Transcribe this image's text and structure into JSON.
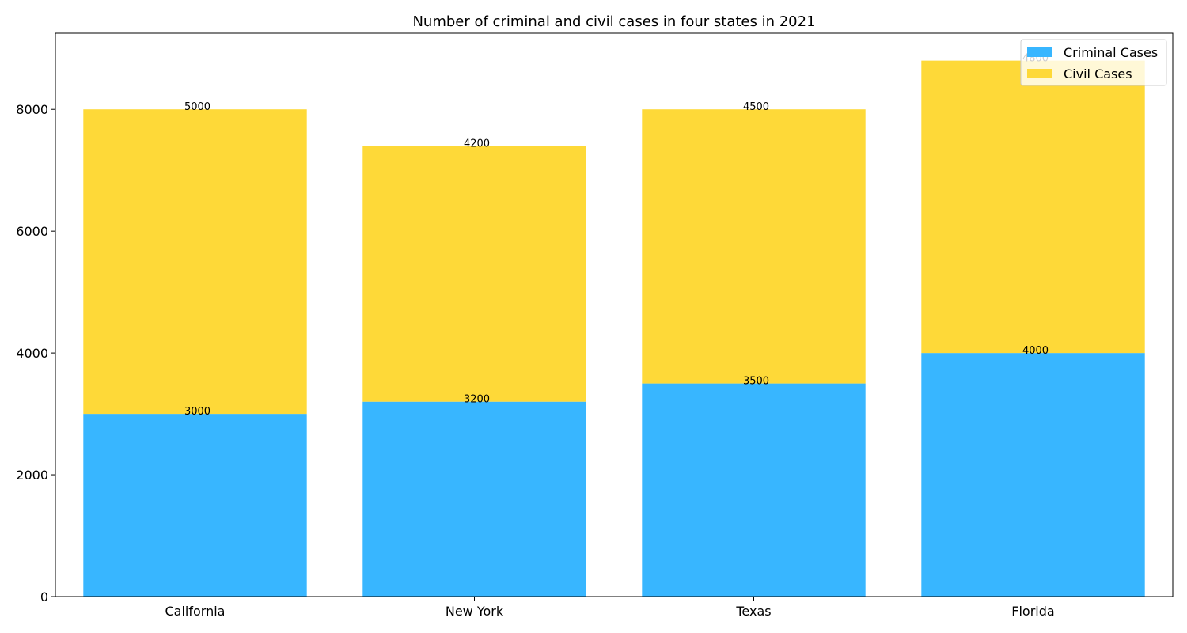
{
  "chart_data": {
    "type": "bar",
    "stacked": true,
    "title": "Number of criminal and civil cases in four states in 2021",
    "xlabel": "",
    "ylabel": "",
    "categories": [
      "California",
      "New York",
      "Texas",
      "Florida"
    ],
    "series": [
      {
        "name": "Criminal Cases",
        "values": [
          3000,
          3200,
          3500,
          4000
        ],
        "color": "#38b6ff"
      },
      {
        "name": "Civil Cases",
        "values": [
          5000,
          4200,
          4500,
          4800
        ],
        "color": "#fed938"
      }
    ],
    "ylim": [
      0,
      9250
    ],
    "yticks": [
      0,
      2000,
      4000,
      6000,
      8000
    ],
    "grid": false,
    "legend": "top-right"
  }
}
